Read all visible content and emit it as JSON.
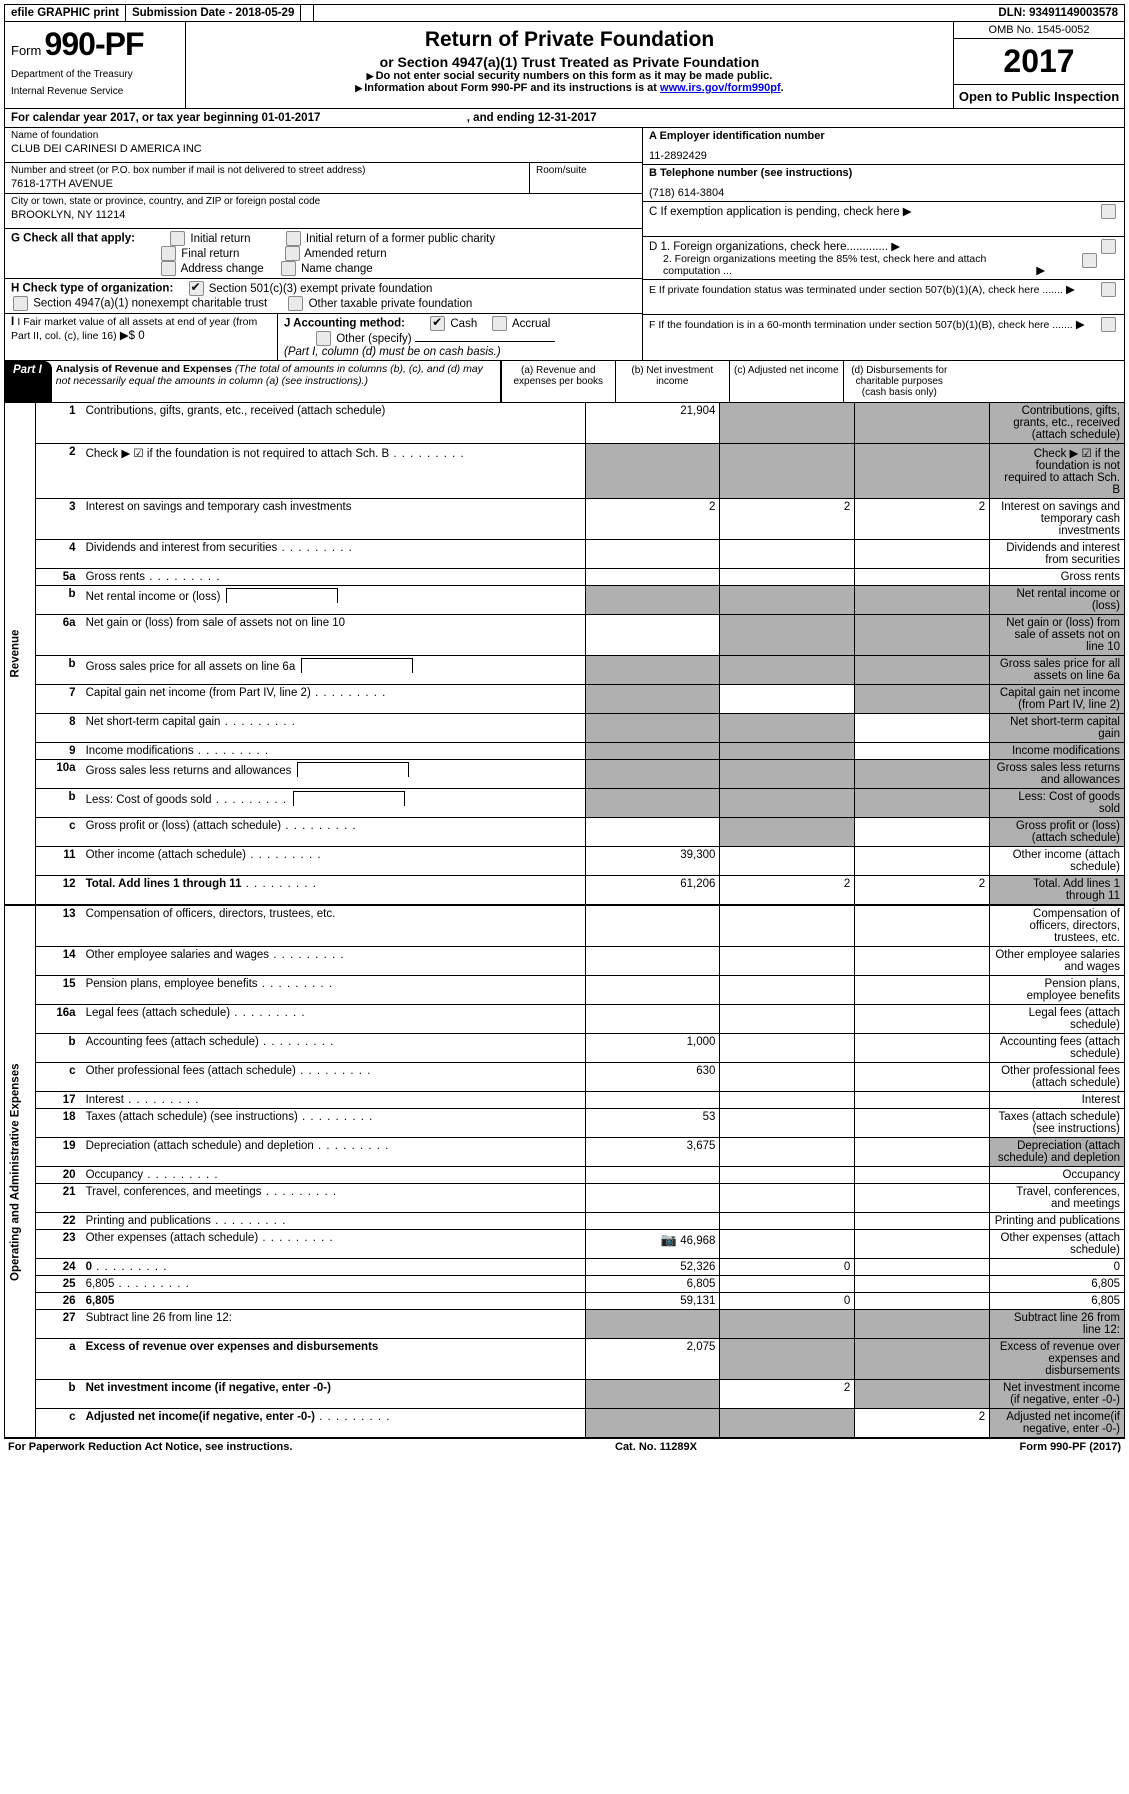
{
  "topbar": {
    "efile": "efile GRAPHIC print",
    "subdate_label": "Submission Date - ",
    "subdate": "2018-05-29",
    "dln_label": "DLN: ",
    "dln": "93491149003578"
  },
  "header": {
    "form_prefix": "Form",
    "form_number": "990-PF",
    "dept1": "Department of the Treasury",
    "dept2": "Internal Revenue Service",
    "title": "Return of Private Foundation",
    "subtitle": "or Section 4947(a)(1) Trust Treated as Private Foundation",
    "note1": "Do not enter social security numbers on this form as it may be made public.",
    "note2_a": "Information about Form 990-PF and its instructions is at ",
    "note2_link": "www.irs.gov/form990pf",
    "note2_b": ".",
    "omb": "OMB No. 1545-0052",
    "year": "2017",
    "open": "Open to Public Inspection"
  },
  "ty": {
    "prefix": "For calendar year 2017, or tax year beginning ",
    "begin": "01-01-2017",
    "mid": " , and ending ",
    "end": "12-31-2017"
  },
  "meta": {
    "name_lbl": "Name of foundation",
    "name": "CLUB DEI CARINESI D AMERICA INC",
    "addr_lbl": "Number and street (or P.O. box number if mail is not delivered to street address)",
    "room_lbl": "Room/suite",
    "addr": "7618-17TH AVENUE",
    "city_lbl": "City or town, state or province, country, and ZIP or foreign postal code",
    "city": "BROOKLYN, NY  11214",
    "g_lbl": "G Check all that apply:",
    "g_opts": {
      "initial": "Initial return",
      "initial_former": "Initial return of a former public charity",
      "final": "Final return",
      "amended": "Amended return",
      "addrchg": "Address change",
      "namechg": "Name change"
    },
    "h_lbl": "H Check type of organization:",
    "h_opts": {
      "c3": "Section 501(c)(3) exempt private foundation",
      "trust": "Section 4947(a)(1) nonexempt charitable trust",
      "other": "Other taxable private foundation"
    },
    "i_lbl": "I Fair market value of all assets at end of year (from Part II, col. (c), line 16)",
    "i_val": "$  0",
    "j_lbl": "J Accounting method:",
    "j_cash": "Cash",
    "j_accrual": "Accrual",
    "j_other": "Other (specify)",
    "j_note": "(Part I, column (d) must be on cash basis.)",
    "ein_lbl": "A Employer identification number",
    "ein": "11-2892429",
    "tel_lbl": "B Telephone number (see instructions)",
    "tel": "(718) 614-3804",
    "c_lbl": "C If exemption application is pending, check here",
    "d1": "D 1. Foreign organizations, check here.............",
    "d2": "2. Foreign organizations meeting the 85% test, check here and attach computation ...",
    "e_lbl": "E  If private foundation status was terminated under section 507(b)(1)(A), check here .......",
    "f_lbl": "F  If the foundation is in a 60-month termination under section 507(b)(1)(B), check here .......",
    "arrow": "▶"
  },
  "part1": {
    "label": "Part I",
    "title": "Analysis of Revenue and Expenses",
    "title_note": " (The total of amounts in columns (b), (c), and (d) may not necessarily equal the amounts in column (a) (see instructions).)",
    "col_a": "(a)   Revenue and expenses per books",
    "col_b": "(b)  Net investment income",
    "col_c": "(c)  Adjusted net income",
    "col_d": "(d)  Disbursements for charitable purposes (cash basis only)"
  },
  "sections": {
    "revenue": "Revenue",
    "opex": "Operating and Administrative Expenses"
  },
  "lines": [
    {
      "n": "1",
      "d": "Contributions, gifts, grants, etc., received (attach schedule)",
      "a": "21,904",
      "shade": [
        "b",
        "c",
        "d"
      ]
    },
    {
      "n": "2",
      "d": "Check ▶ ☑ if the foundation is not required to attach Sch. B",
      "dots": true,
      "shade": [
        "a",
        "b",
        "c",
        "d"
      ],
      "bold_check": true
    },
    {
      "n": "3",
      "d": "Interest on savings and temporary cash investments",
      "a": "2",
      "b": "2",
      "c": "2"
    },
    {
      "n": "4",
      "d": "Dividends and interest from securities",
      "dots": true
    },
    {
      "n": "5a",
      "d": "Gross rents",
      "dots": true
    },
    {
      "n": "b",
      "d": "Net rental income or (loss)",
      "shade": [
        "a",
        "b",
        "c",
        "d"
      ],
      "inline_box": true
    },
    {
      "n": "6a",
      "d": "Net gain or (loss) from sale of assets not on line 10",
      "shade": [
        "b",
        "c",
        "d"
      ]
    },
    {
      "n": "b",
      "d": "Gross sales price for all assets on line 6a",
      "shade": [
        "a",
        "b",
        "c",
        "d"
      ],
      "inline_box": true
    },
    {
      "n": "7",
      "d": "Capital gain net income (from Part IV, line 2)",
      "dots": true,
      "shade": [
        "a",
        "c",
        "d"
      ]
    },
    {
      "n": "8",
      "d": "Net short-term capital gain",
      "dots": true,
      "shade": [
        "a",
        "b",
        "d"
      ]
    },
    {
      "n": "9",
      "d": "Income modifications",
      "dots": true,
      "shade": [
        "a",
        "b",
        "d"
      ]
    },
    {
      "n": "10a",
      "d": "Gross sales less returns and allowances",
      "shade": [
        "a",
        "b",
        "c",
        "d"
      ],
      "inline_box": true
    },
    {
      "n": "b",
      "d": "Less: Cost of goods sold",
      "dots": true,
      "shade": [
        "a",
        "b",
        "c",
        "d"
      ],
      "inline_box": true
    },
    {
      "n": "c",
      "d": "Gross profit or (loss) (attach schedule)",
      "dots": true,
      "shade": [
        "b",
        "d"
      ]
    },
    {
      "n": "11",
      "d": "Other income (attach schedule)",
      "dots": true,
      "a": "39,300"
    },
    {
      "n": "12",
      "d": "Total. Add lines 1 through 11",
      "dots": true,
      "a": "61,206",
      "b": "2",
      "c": "2",
      "bold": true,
      "shade": [
        "d"
      ]
    }
  ],
  "oplines": [
    {
      "n": "13",
      "d": "Compensation of officers, directors, trustees, etc."
    },
    {
      "n": "14",
      "d": "Other employee salaries and wages",
      "dots": true
    },
    {
      "n": "15",
      "d": "Pension plans, employee benefits",
      "dots": true
    },
    {
      "n": "16a",
      "d": "Legal fees (attach schedule)",
      "dots": true
    },
    {
      "n": "b",
      "d": "Accounting fees (attach schedule)",
      "dots": true,
      "a": "1,000"
    },
    {
      "n": "c",
      "d": "Other professional fees (attach schedule)",
      "dots": true,
      "a": "630"
    },
    {
      "n": "17",
      "d": "Interest",
      "dots": true
    },
    {
      "n": "18",
      "d": "Taxes (attach schedule) (see instructions)",
      "dots": true,
      "a": "53"
    },
    {
      "n": "19",
      "d": "Depreciation (attach schedule) and depletion",
      "dots": true,
      "a": "3,675",
      "shade": [
        "d"
      ]
    },
    {
      "n": "20",
      "d": "Occupancy",
      "dots": true
    },
    {
      "n": "21",
      "d": "Travel, conferences, and meetings",
      "dots": true
    },
    {
      "n": "22",
      "d": "Printing and publications",
      "dots": true
    },
    {
      "n": "23",
      "d": "Other expenses (attach schedule)",
      "dots": true,
      "a": "46,968",
      "cam": true
    },
    {
      "n": "24",
      "d": "0",
      "dots": true,
      "a": "52,326",
      "b": "0",
      "bold": true,
      "twoline": true
    },
    {
      "n": "25",
      "d": "6,805",
      "dots": true,
      "a": "6,805"
    },
    {
      "n": "26",
      "d": "6,805",
      "a": "59,131",
      "b": "0",
      "bold": true,
      "twoline": true
    },
    {
      "n": "27",
      "d": "Subtract line 26 from line 12:",
      "shade": [
        "a",
        "b",
        "c",
        "d"
      ]
    },
    {
      "n": "a",
      "d": "Excess of revenue over expenses and disbursements",
      "a": "2,075",
      "bold": true,
      "shade": [
        "b",
        "c",
        "d"
      ]
    },
    {
      "n": "b",
      "d": "Net investment income (if negative, enter -0-)",
      "b": "2",
      "bold": true,
      "shade": [
        "a",
        "c",
        "d"
      ]
    },
    {
      "n": "c",
      "d": "Adjusted net income(if negative, enter -0-)",
      "dots": true,
      "c": "2",
      "bold": true,
      "shade": [
        "a",
        "b",
        "d"
      ]
    }
  ],
  "footer": {
    "left": "For Paperwork Reduction Act Notice, see instructions.",
    "mid": "Cat. No. 11289X",
    "right": "Form 990-PF (2017)"
  }
}
